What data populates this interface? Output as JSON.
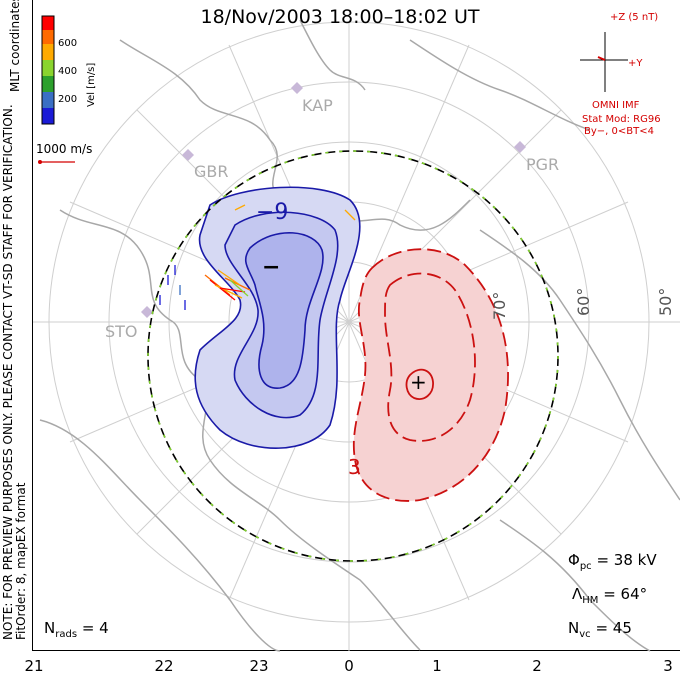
{
  "title": "18/Nov/2003 18:00–18:02 UT",
  "side_note": {
    "line1": "NOTE: FOR PREVIEW PURPOSES ONLY. PLEASE CONTACT VT-SD STAFF FOR VERIFICATION.",
    "line2": "FitOrder: 8, mapEX format"
  },
  "coords_label": "MLT coordinates",
  "colorbar": {
    "title": "Vel [m/s]",
    "ticks": [
      "600",
      "400",
      "200"
    ],
    "colors": [
      "#ff0000",
      "#ff6a00",
      "#ffaa00",
      "#8ad42e",
      "#2ca02c",
      "#3a6fc4",
      "#1b1bd6"
    ]
  },
  "velocity_ref": "1000 m/s",
  "imf": {
    "plus_z": "+Z (5 nT)",
    "plus_y": "+Y",
    "omni": "OMNI IMF",
    "stat_mod": "Stat Mod: RG96",
    "condition": "By−, 0<BT<4"
  },
  "stations": [
    "KAP",
    "GBR",
    "PGR",
    "STO"
  ],
  "latitudes": [
    "70°",
    "60°",
    "50°"
  ],
  "contours": {
    "negative_label": "−9",
    "positive_label": "3",
    "min_marker": "−",
    "max_marker": "+"
  },
  "stats": {
    "phi_pc": {
      "symbol": "Φ",
      "sub": "pc",
      "value": "= 38 kV"
    },
    "lambda_hm": {
      "symbol": "Λ",
      "sub": "HM",
      "value": "= 64°"
    },
    "n_vc": {
      "symbol": "N",
      "sub": "vc",
      "value": "= 45"
    },
    "n_rads": {
      "symbol": "N",
      "sub": "rads",
      "value": "= 4"
    }
  },
  "mlt_ticks": [
    "21",
    "22",
    "23",
    "0",
    "1",
    "2",
    "3"
  ],
  "colors": {
    "negative_fill": "#c9cdf0",
    "negative_line": "#1a1aa8",
    "positive_fill": "#f4c7c7",
    "positive_line": "#cc1111",
    "boundary": "#000000",
    "heppner": "#7fd12a",
    "land": "#a8a8a8"
  }
}
